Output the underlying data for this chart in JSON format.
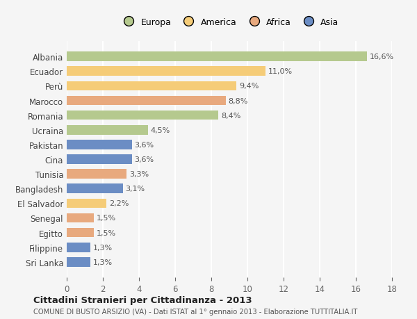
{
  "countries": [
    "Albania",
    "Ecuador",
    "Perù",
    "Marocco",
    "Romania",
    "Ucraina",
    "Pakistan",
    "Cina",
    "Tunisia",
    "Bangladesh",
    "El Salvador",
    "Senegal",
    "Egitto",
    "Filippine",
    "Sri Lanka"
  ],
  "values": [
    16.6,
    11.0,
    9.4,
    8.8,
    8.4,
    4.5,
    3.6,
    3.6,
    3.3,
    3.1,
    2.2,
    1.5,
    1.5,
    1.3,
    1.3
  ],
  "labels": [
    "16,6%",
    "11,0%",
    "9,4%",
    "8,8%",
    "8,4%",
    "4,5%",
    "3,6%",
    "3,6%",
    "3,3%",
    "3,1%",
    "2,2%",
    "1,5%",
    "1,5%",
    "1,3%",
    "1,3%"
  ],
  "categories": [
    "Europa",
    "America",
    "Africa",
    "Asia"
  ],
  "bar_colors": [
    "#b5c98e",
    "#f5cc78",
    "#f5cc78",
    "#e8a97e",
    "#b5c98e",
    "#b5c98e",
    "#6b8dc4",
    "#6b8dc4",
    "#e8a97e",
    "#6b8dc4",
    "#f5cc78",
    "#e8a97e",
    "#e8a97e",
    "#6b8dc4",
    "#6b8dc4"
  ],
  "legend_colors": [
    "#b5c98e",
    "#f5cc78",
    "#e8a97e",
    "#6b8dc4"
  ],
  "xlim": [
    0,
    18
  ],
  "xticks": [
    0,
    2,
    4,
    6,
    8,
    10,
    12,
    14,
    16,
    18
  ],
  "title": "Cittadini Stranieri per Cittadinanza - 2013",
  "subtitle": "COMUNE DI BUSTO ARSIZIO (VA) - Dati ISTAT al 1° gennaio 2013 - Elaborazione TUTTITALIA.IT",
  "bg_color": "#f5f5f5",
  "grid_color": "#ffffff",
  "bar_height": 0.65
}
